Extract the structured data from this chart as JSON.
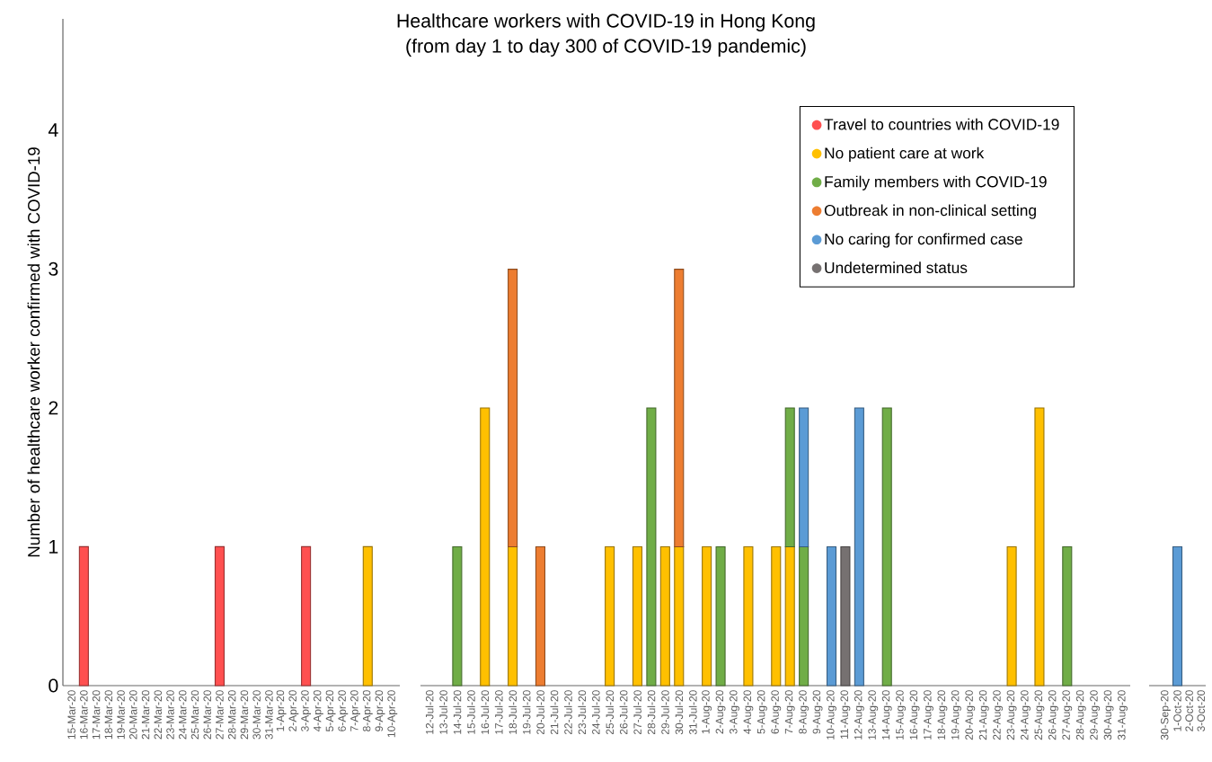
{
  "chart_data": [
    {
      "type": "bar",
      "ylabel": "Number of healthcare worker confirmed with COVID-19",
      "stacked": true,
      "ylim": [
        0,
        4.8
      ],
      "yticks": [
        0,
        1,
        2,
        3,
        4
      ],
      "categories": [
        "15-Mar-20",
        "16-Mar-20",
        "17-Mar-20",
        "18-Mar-20",
        "19-Mar-20",
        "20-Mar-20",
        "21-Mar-20",
        "22-Mar-20",
        "23-Mar-20",
        "24-Mar-20",
        "25-Mar-20",
        "26-Mar-20",
        "27-Mar-20",
        "28-Mar-20",
        "29-Mar-20",
        "30-Mar-20",
        "31-Mar-20",
        "1-Apr-20",
        "2-Apr-20",
        "3-Apr-20",
        "4-Apr-20",
        "5-Apr-20",
        "6-Apr-20",
        "7-Apr-20",
        "8-Apr-20",
        "9-Apr-20",
        "10-Apr-20"
      ],
      "series": [
        {
          "color": "#ff5050",
          "values": [
            null,
            1,
            null,
            null,
            null,
            null,
            null,
            null,
            null,
            null,
            null,
            null,
            1,
            null,
            null,
            null,
            null,
            null,
            null,
            1,
            null,
            null,
            null,
            null,
            null,
            null,
            null
          ]
        },
        {
          "color": "#ffc000",
          "values": [
            null,
            null,
            null,
            null,
            null,
            null,
            null,
            null,
            null,
            null,
            null,
            null,
            null,
            null,
            null,
            null,
            null,
            null,
            null,
            null,
            null,
            null,
            null,
            null,
            1,
            null,
            null
          ]
        }
      ]
    },
    {
      "type": "bar",
      "title": "Healthcare workers with COVID-19 in Hong Kong",
      "subtitle": "(from day 1 to day 300 of COVID-19 pandemic)",
      "stacked": true,
      "ylim": [
        0,
        4
      ],
      "yticks": [
        0,
        1,
        2,
        3,
        4
      ],
      "tick_labels": "x",
      "legend": "top right",
      "categories": [
        "12-Jul-20",
        "13-Jul-20",
        "14-Jul-20",
        "15-Jul-20",
        "16-Jul-20",
        "17-Jul-20",
        "18-Jul-20",
        "19-Jul-20",
        "20-Jul-20",
        "21-Jul-20",
        "22-Jul-20",
        "23-Jul-20",
        "24-Jul-20",
        "25-Jul-20",
        "26-Jul-20",
        "27-Jul-20",
        "28-Jul-20",
        "29-Jul-20",
        "30-Jul-20",
        "31-Jul-20",
        "1-Aug-20",
        "2-Aug-20",
        "3-Aug-20",
        "4-Aug-20",
        "5-Aug-20",
        "6-Aug-20",
        "7-Aug-20",
        "8-Aug-20",
        "9-Aug-20",
        "10-Aug-20",
        "11-Aug-20",
        "12-Aug-20",
        "13-Aug-20",
        "14-Aug-20",
        "15-Aug-20",
        "16-Aug-20",
        "17-Aug-20",
        "18-Aug-20",
        "19-Aug-20",
        "20-Aug-20",
        "21-Aug-20",
        "22-Aug-20",
        "23-Aug-20",
        "24-Aug-20",
        "25-Aug-20",
        "26-Aug-20",
        "27-Aug-20",
        "28-Aug-20",
        "29-Aug-20",
        "30-Aug-20",
        "31-Aug-20"
      ],
      "series": [
        {
          "name": "Travel to countries with COVID-19",
          "color": "#ff5050",
          "values": [
            null,
            null,
            null,
            null,
            null,
            null,
            null,
            null,
            null,
            null,
            null,
            null,
            null,
            null,
            null,
            null,
            null,
            null,
            null,
            null,
            null,
            null,
            null,
            null,
            null,
            null,
            null,
            null,
            null,
            null,
            null,
            null,
            null,
            null,
            null,
            null,
            null,
            null,
            null,
            null,
            null,
            null,
            null,
            null,
            null,
            null,
            null,
            null,
            null,
            null,
            null
          ]
        },
        {
          "name": "No patient care at work",
          "color": "#ffc000",
          "values": [
            null,
            null,
            null,
            null,
            2,
            null,
            1,
            null,
            null,
            null,
            null,
            null,
            null,
            1,
            null,
            1,
            null,
            1,
            1,
            null,
            1,
            null,
            null,
            1,
            null,
            1,
            1,
            null,
            null,
            null,
            null,
            null,
            null,
            null,
            null,
            null,
            null,
            null,
            null,
            null,
            null,
            null,
            1,
            null,
            2,
            null,
            null,
            null,
            null,
            null,
            null
          ]
        },
        {
          "name": "Family members with COVID-19",
          "color": "#70ad47",
          "values": [
            null,
            null,
            1,
            null,
            null,
            null,
            null,
            null,
            null,
            null,
            null,
            null,
            null,
            null,
            null,
            null,
            2,
            null,
            null,
            null,
            null,
            1,
            null,
            null,
            null,
            null,
            1,
            1,
            null,
            null,
            null,
            null,
            null,
            2,
            null,
            null,
            null,
            null,
            null,
            null,
            null,
            null,
            null,
            null,
            null,
            null,
            1,
            null,
            null,
            null,
            null
          ]
        },
        {
          "name": "Outbreak in non-clinical setting",
          "color": "#ed7d31",
          "values": [
            null,
            null,
            null,
            null,
            null,
            null,
            2,
            null,
            1,
            null,
            null,
            null,
            null,
            null,
            null,
            null,
            null,
            null,
            2,
            null,
            null,
            null,
            null,
            null,
            null,
            null,
            null,
            null,
            null,
            null,
            null,
            null,
            null,
            null,
            null,
            null,
            null,
            null,
            null,
            null,
            null,
            null,
            null,
            null,
            null,
            null,
            null,
            null,
            null,
            null,
            null
          ]
        },
        {
          "name": "No caring for confirmed case",
          "color": "#5b9bd5",
          "values": [
            null,
            null,
            null,
            null,
            null,
            null,
            null,
            null,
            null,
            null,
            null,
            null,
            null,
            null,
            null,
            null,
            null,
            null,
            null,
            null,
            null,
            null,
            null,
            null,
            null,
            null,
            null,
            1,
            null,
            1,
            null,
            2,
            null,
            null,
            null,
            null,
            null,
            null,
            null,
            null,
            null,
            null,
            null,
            null,
            null,
            null,
            null,
            null,
            null,
            null,
            null
          ]
        },
        {
          "name": "Undetermined status",
          "color": "#767171",
          "values": [
            null,
            null,
            null,
            null,
            null,
            null,
            null,
            null,
            null,
            null,
            null,
            null,
            null,
            null,
            null,
            null,
            null,
            null,
            null,
            null,
            null,
            null,
            null,
            null,
            null,
            null,
            null,
            null,
            null,
            null,
            1,
            null,
            null,
            null,
            null,
            null,
            null,
            null,
            null,
            null,
            null,
            null,
            null,
            null,
            null,
            null,
            null,
            null,
            null,
            null,
            null
          ]
        }
      ]
    },
    {
      "type": "bar",
      "stacked": true,
      "ylim": [
        0,
        4
      ],
      "yticks": [
        0,
        1,
        2,
        3,
        4
      ],
      "tick_labels": "x",
      "categories": [
        "30-Sep-20",
        "1-Oct-20",
        "2-Oct-20",
        "3-Oct-20"
      ],
      "series": [
        {
          "color": "#5b9bd5",
          "values": [
            null,
            1,
            null,
            null
          ]
        }
      ]
    }
  ]
}
